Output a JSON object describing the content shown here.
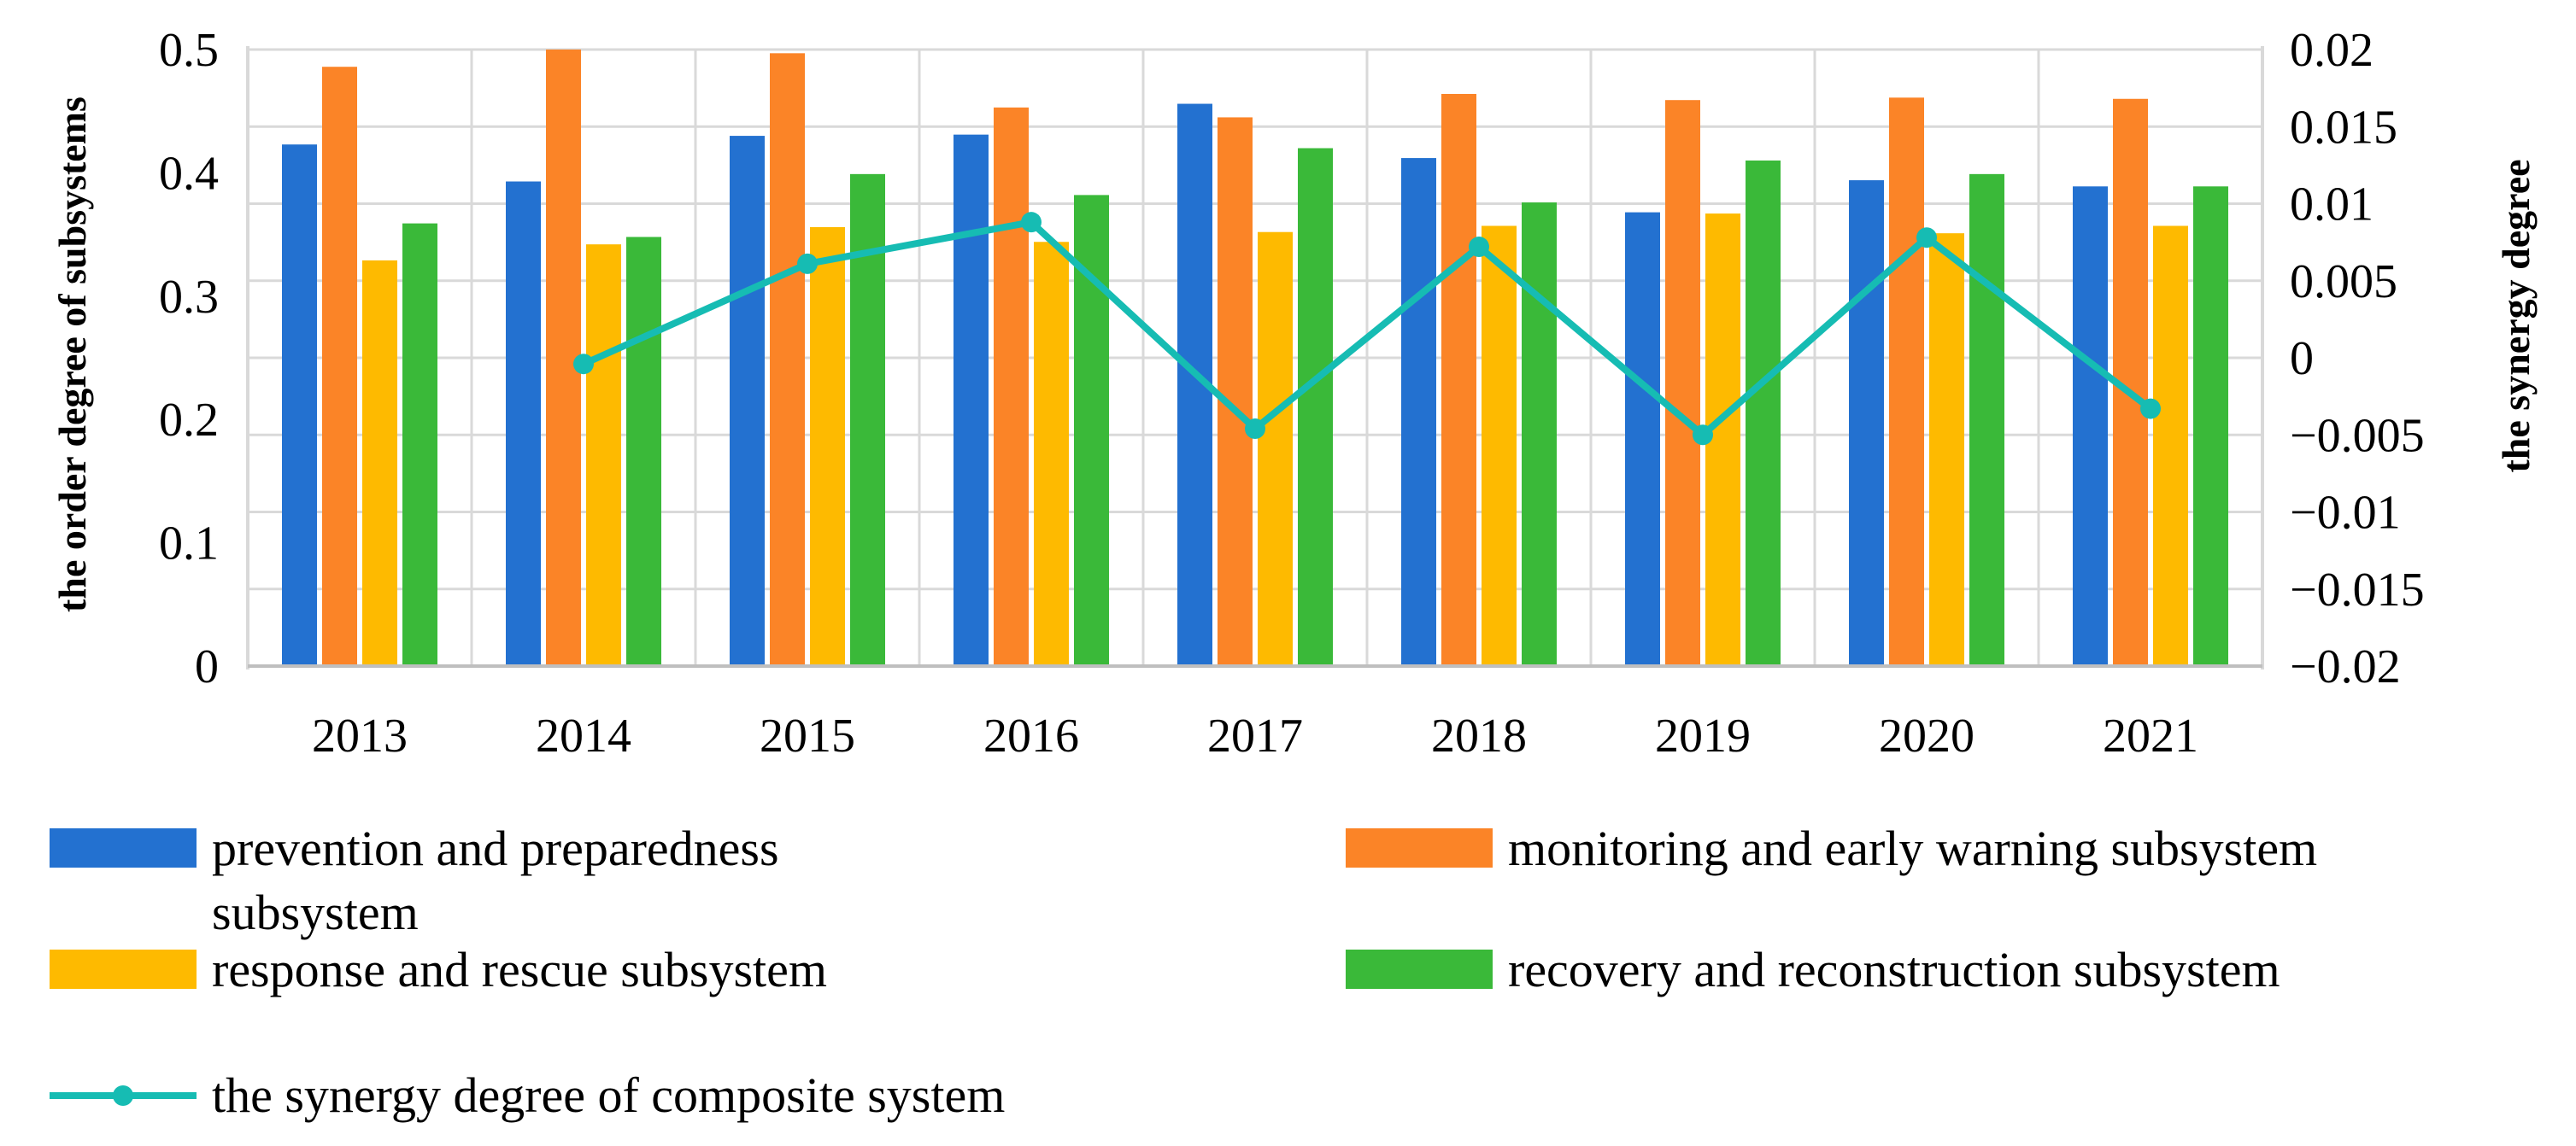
{
  "chart_data": {
    "type": "bar",
    "categories": [
      "2013",
      "2014",
      "2015",
      "2016",
      "2017",
      "2018",
      "2019",
      "2020",
      "2021"
    ],
    "series": [
      {
        "name": "prevention and preparedness subsystem",
        "color": "#2371d0",
        "kind": "bar",
        "axis": "left",
        "values": [
          0.423,
          0.393,
          0.43,
          0.431,
          0.456,
          0.412,
          0.368,
          0.394,
          0.389
        ]
      },
      {
        "name": "monitoring and early warning subsystem",
        "color": "#fb8427",
        "kind": "bar",
        "axis": "left",
        "values": [
          0.486,
          0.5,
          0.497,
          0.453,
          0.445,
          0.464,
          0.459,
          0.461,
          0.46
        ]
      },
      {
        "name": "response and rescue subsystem",
        "color": "#feba00",
        "kind": "bar",
        "axis": "left",
        "values": [
          0.329,
          0.342,
          0.356,
          0.344,
          0.352,
          0.357,
          0.367,
          0.351,
          0.357
        ]
      },
      {
        "name": "recovery and reconstruction subsystem",
        "color": "#3ab939",
        "kind": "bar",
        "axis": "left",
        "values": [
          0.359,
          0.348,
          0.399,
          0.382,
          0.42,
          0.376,
          0.41,
          0.399,
          0.389
        ]
      },
      {
        "name": "the synergy degree of composite system",
        "color": "#16bcb3",
        "kind": "line",
        "axis": "right",
        "values": [
          null,
          -0.0004,
          0.0061,
          0.0088,
          -0.0046,
          0.0072,
          -0.005,
          0.0078,
          -0.0033
        ]
      }
    ],
    "y_left": {
      "label": "the order degree of subsystems",
      "min": 0,
      "max": 0.5,
      "ticks": [
        "0",
        "0.1",
        "0.2",
        "0.3",
        "0.4",
        "0.5"
      ]
    },
    "y_right": {
      "label": "the synergy degree",
      "min": -0.02,
      "max": 0.02,
      "ticks": [
        "−0.02",
        "−0.015",
        "−0.01",
        "−0.005",
        "0",
        "0.005",
        "0.01",
        "0.015",
        "0.02"
      ]
    },
    "legend": {
      "prevention_line1": "prevention and preparedness",
      "prevention_line2": "subsystem",
      "monitoring": "monitoring and early warning subsystem",
      "response": "response and rescue subsystem",
      "recovery": "recovery and reconstruction subsystem",
      "synergy": "the synergy degree of composite system",
      "position": "bottom"
    },
    "grid": true
  }
}
